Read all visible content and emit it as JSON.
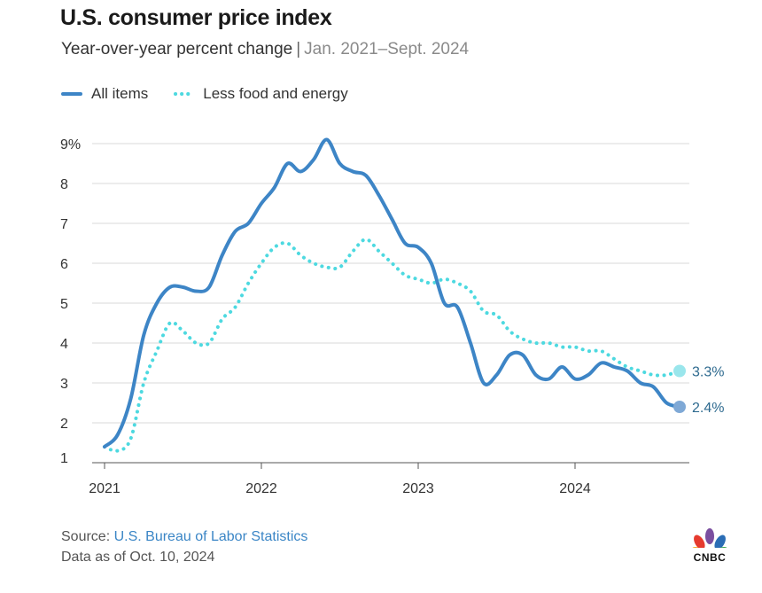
{
  "chart_data": {
    "type": "line",
    "title": "U.S. consumer price index",
    "subtitle": "Year-over-year percent change",
    "subtitle_separator": "|",
    "subtitle_range": "Jan. 2021–Sept. 2024",
    "xlabel": "",
    "ylabel": "",
    "ylim": [
      1,
      9
    ],
    "y_ticks": [
      "1",
      "2",
      "3",
      "4",
      "5",
      "6",
      "7",
      "8",
      "9%"
    ],
    "x_ticks": [
      "2021",
      "2022",
      "2023",
      "2024"
    ],
    "grid": true,
    "legend_position": "top-left",
    "x": [
      "2021-01",
      "2021-02",
      "2021-03",
      "2021-04",
      "2021-05",
      "2021-06",
      "2021-07",
      "2021-08",
      "2021-09",
      "2021-10",
      "2021-11",
      "2021-12",
      "2022-01",
      "2022-02",
      "2022-03",
      "2022-04",
      "2022-05",
      "2022-06",
      "2022-07",
      "2022-08",
      "2022-09",
      "2022-10",
      "2022-11",
      "2022-12",
      "2023-01",
      "2023-02",
      "2023-03",
      "2023-04",
      "2023-05",
      "2023-06",
      "2023-07",
      "2023-08",
      "2023-09",
      "2023-10",
      "2023-11",
      "2023-12",
      "2024-01",
      "2024-02",
      "2024-03",
      "2024-04",
      "2024-05",
      "2024-06",
      "2024-07",
      "2024-08",
      "2024-09"
    ],
    "series": [
      {
        "name": "All items",
        "style": "solid",
        "color": "#3d85c6",
        "end_label": "2.4%",
        "values": [
          1.4,
          1.7,
          2.6,
          4.2,
          5.0,
          5.4,
          5.4,
          5.3,
          5.4,
          6.2,
          6.8,
          7.0,
          7.5,
          7.9,
          8.5,
          8.3,
          8.6,
          9.1,
          8.5,
          8.3,
          8.2,
          7.7,
          7.1,
          6.5,
          6.4,
          6.0,
          5.0,
          4.9,
          4.0,
          3.0,
          3.2,
          3.7,
          3.7,
          3.2,
          3.1,
          3.4,
          3.1,
          3.2,
          3.5,
          3.4,
          3.3,
          3.0,
          2.9,
          2.5,
          2.4
        ]
      },
      {
        "name": "Less food and energy",
        "style": "dotted",
        "color": "#4dd9e0",
        "end_label": "3.3%",
        "values": [
          1.4,
          1.3,
          1.6,
          3.0,
          3.8,
          4.5,
          4.3,
          4.0,
          4.0,
          4.6,
          4.9,
          5.5,
          6.0,
          6.4,
          6.5,
          6.2,
          6.0,
          5.9,
          5.9,
          6.3,
          6.6,
          6.3,
          6.0,
          5.7,
          5.6,
          5.5,
          5.6,
          5.5,
          5.3,
          4.8,
          4.7,
          4.3,
          4.1,
          4.0,
          4.0,
          3.9,
          3.9,
          3.8,
          3.8,
          3.6,
          3.4,
          3.3,
          3.2,
          3.2,
          3.3
        ]
      }
    ]
  },
  "source": {
    "prefix": "Source: ",
    "link_text": "U.S. Bureau of Labor Statistics",
    "date_text": "Data as of Oct. 10, 2024"
  },
  "logo": {
    "text": "CNBC"
  },
  "colors": {
    "all_items": "#3d85c6",
    "core": "#4dd9e0",
    "grid": "#d9d9d9"
  }
}
